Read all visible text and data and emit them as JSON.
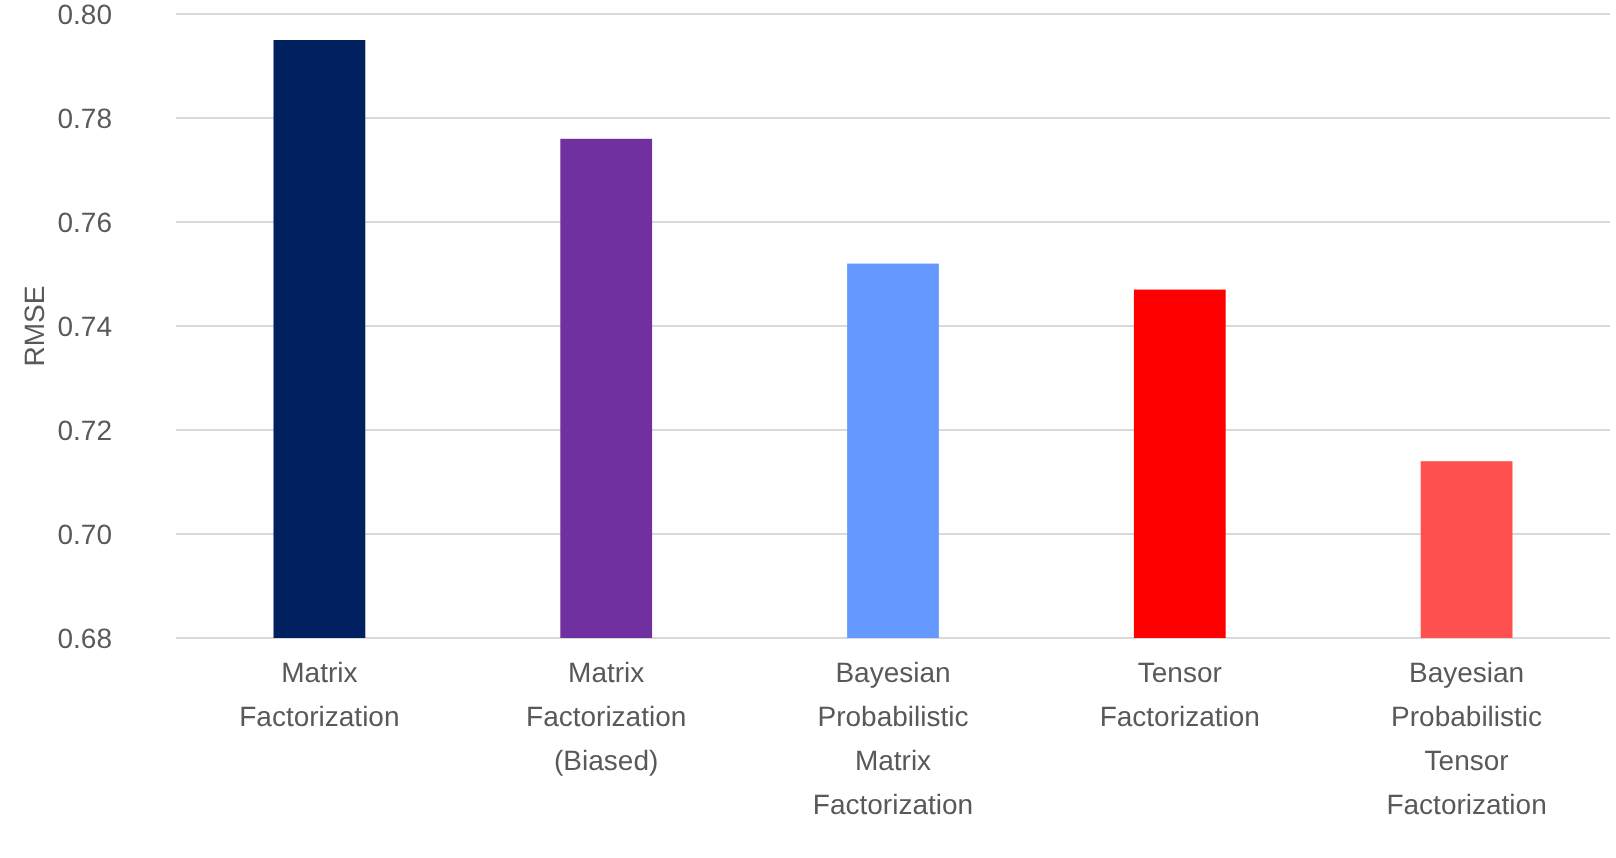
{
  "chart_data": {
    "type": "bar",
    "ylabel": "RMSE",
    "categories": [
      "Matrix Factorization",
      "Matrix Factorization (Biased)",
      "Bayesian Probabilistic Matrix Factorization",
      "Tensor Factorization",
      "Bayesian Probabilistic Tensor Factorization"
    ],
    "values": [
      0.795,
      0.776,
      0.752,
      0.747,
      0.714
    ],
    "colors": [
      "#002060",
      "#7030a0",
      "#6699ff",
      "#ff0000",
      "#ff5050"
    ],
    "ylim": [
      0.68,
      0.8
    ],
    "yticks": [
      {
        "value": 0.68,
        "label": "0.68"
      },
      {
        "value": 0.7,
        "label": "0.70"
      },
      {
        "value": 0.72,
        "label": "0.72"
      },
      {
        "value": 0.74,
        "label": "0.74"
      },
      {
        "value": 0.76,
        "label": "0.76"
      },
      {
        "value": 0.78,
        "label": "0.78"
      },
      {
        "value": 0.8,
        "label": "0.80"
      }
    ],
    "grid": "y"
  }
}
